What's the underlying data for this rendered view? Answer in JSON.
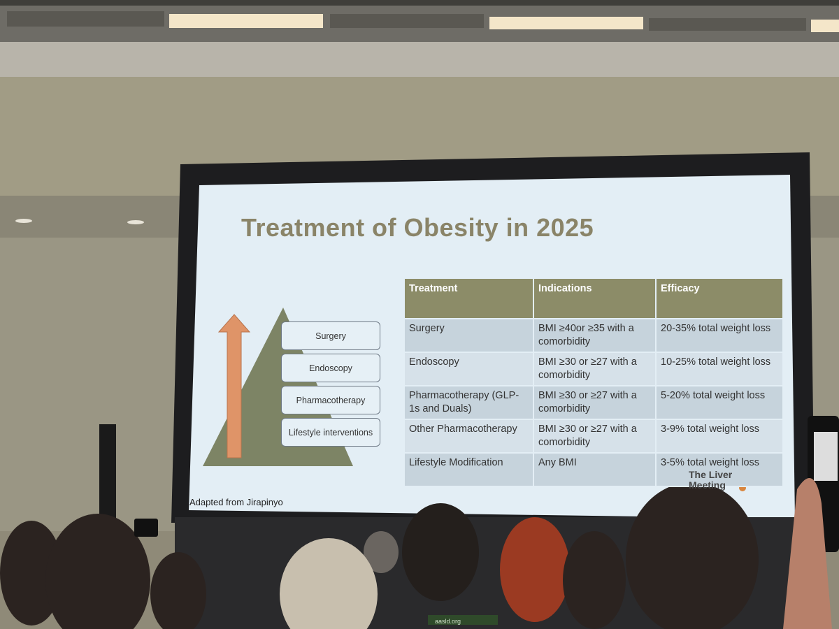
{
  "slide": {
    "title": "Treatment of Obesity in 2025",
    "pyramid": [
      "Surgery",
      "Endoscopy",
      "Pharmacotherapy",
      "Lifestyle interventions"
    ],
    "table": {
      "header": [
        "Treatment",
        "Indications",
        "Efficacy"
      ],
      "rows": [
        [
          "Surgery",
          "BMI ≥40or ≥35 with a comorbidity",
          "20-35% total weight loss"
        ],
        [
          "Endoscopy",
          "BMI ≥30 or ≥27 with a comorbidity",
          "10-25% total weight loss"
        ],
        [
          "Pharmacotherapy (GLP-1s and Duals)",
          "BMI ≥30 or ≥27 with a comorbidity",
          "5-20% total weight loss"
        ],
        [
          "Other Pharmacotherapy",
          "BMI ≥30 or ≥27 with a comorbidity",
          "3-9% total weight loss"
        ],
        [
          "Lifestyle Modification",
          "Any BMI",
          "3-5% total weight loss"
        ]
      ]
    },
    "footnote": "Adapted from Jirapinyo",
    "logo": "The Liver Meeting"
  },
  "badge": "aasld.org"
}
